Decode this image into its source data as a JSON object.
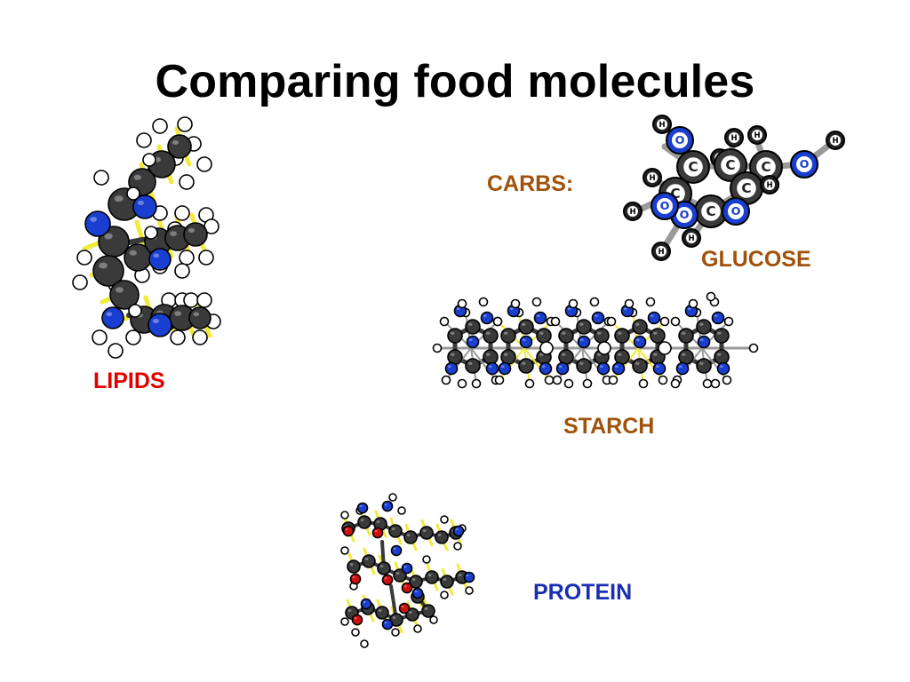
{
  "slide": {
    "title": "Comparing food molecules"
  },
  "labels": {
    "carbs": "CARBS:",
    "glucose": "GLUCOSE",
    "starch": "STARCH",
    "lipids": "LIPIDS",
    "protein": "PROTEIN"
  },
  "atom_letters": {
    "oxygen": "O",
    "carbon": "C",
    "hydrogen": "H"
  },
  "colors": {
    "carbs": "#A0520A",
    "glucose": "#A0520A",
    "starch": "#A0520A",
    "lipids": "#E00000",
    "protein": "#1A2FB0",
    "carbon_atom": "#3a3a3a",
    "oxygen_atom": "#1a3fd0",
    "hydrogen_atom": "#ffffff",
    "red_atom": "#d01010",
    "bond_yellow": "#f2ea3a",
    "bond_grey": "#9a9a9a"
  },
  "icons": {
    "lipids": "lipid-molecule-illustration",
    "glucose": "glucose-molecule-illustration",
    "starch": "starch-molecule-illustration",
    "protein": "protein-molecule-illustration"
  }
}
